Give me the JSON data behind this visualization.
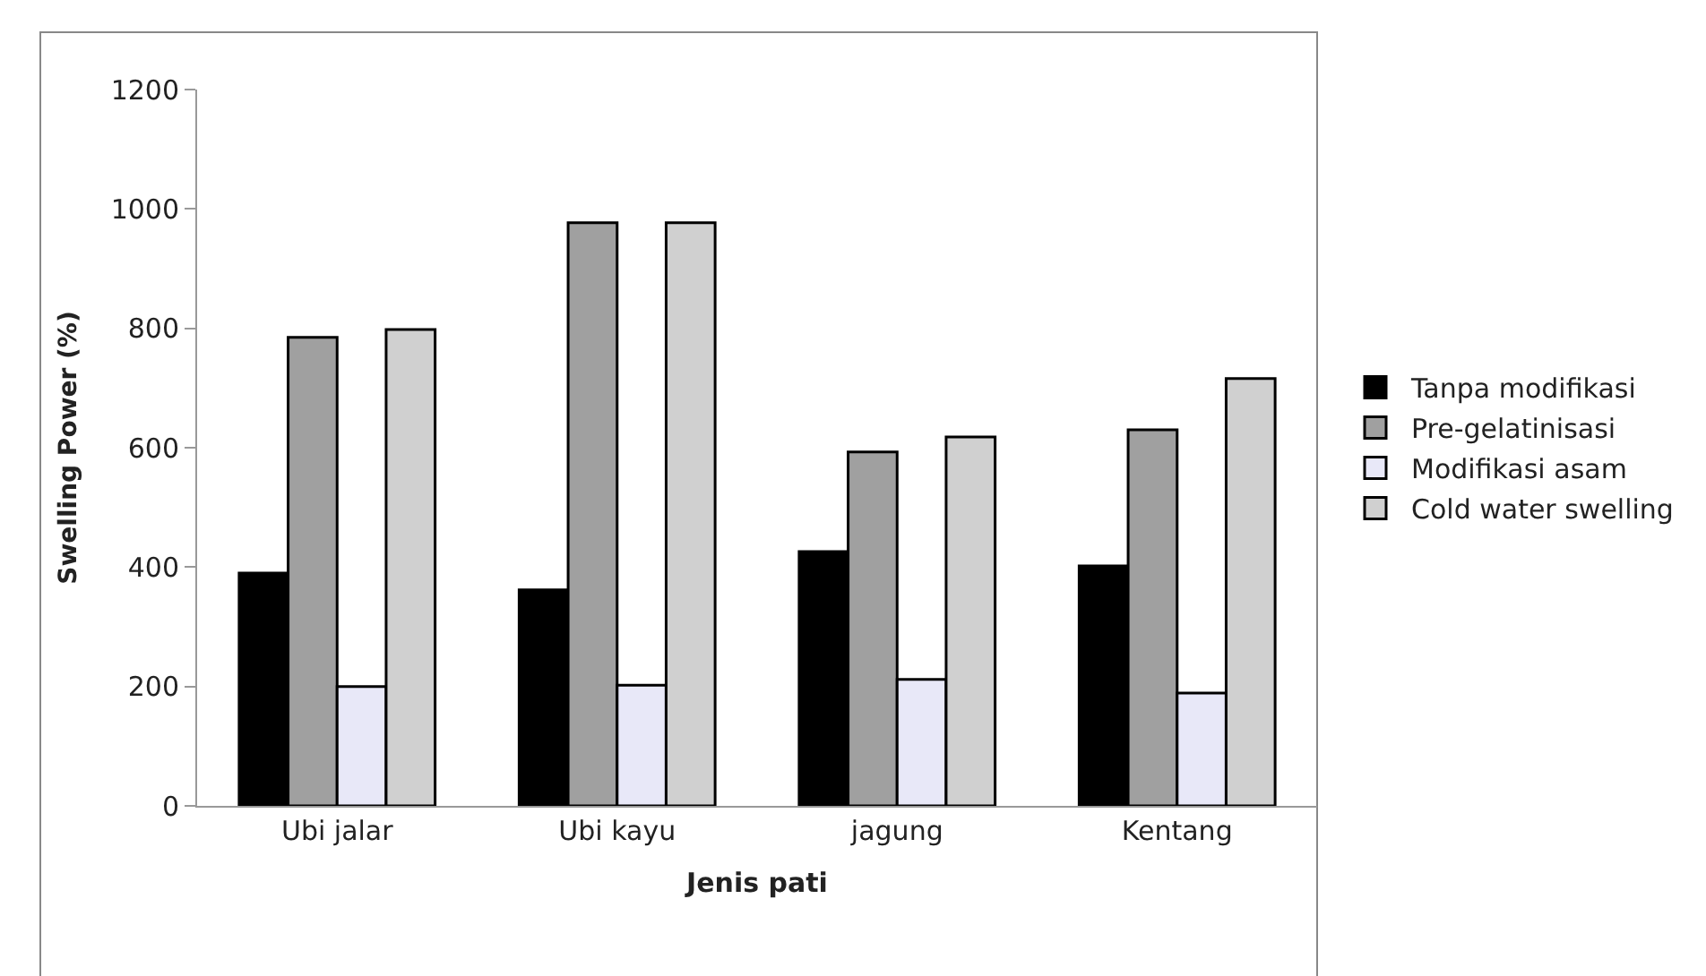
{
  "chart_data": {
    "type": "bar",
    "xlabel": "Jenis pati",
    "ylabel": "Swelling Power (%)",
    "categories": [
      "Ubi jalar",
      "Ubi kayu",
      "jagung",
      "Kentang"
    ],
    "series": [
      {
        "name": "Tanpa modifikasi",
        "color": "#000000",
        "values": [
          390,
          362,
          426,
          402
        ]
      },
      {
        "name": "Pre-gelatinisasi",
        "color": "#a0a0a0",
        "values": [
          785,
          977,
          593,
          630
        ]
      },
      {
        "name": "Modifikasi asam",
        "color": "#e8e8f8",
        "values": [
          200,
          202,
          212,
          189
        ]
      },
      {
        "name": "Cold water swelling",
        "color": "#d0d0d0",
        "values": [
          798,
          977,
          618,
          716
        ]
      }
    ],
    "ylim": [
      0,
      1200
    ],
    "yticks": [
      0,
      200,
      400,
      600,
      800,
      1000,
      1200
    ],
    "grid": false,
    "legend": "right"
  }
}
